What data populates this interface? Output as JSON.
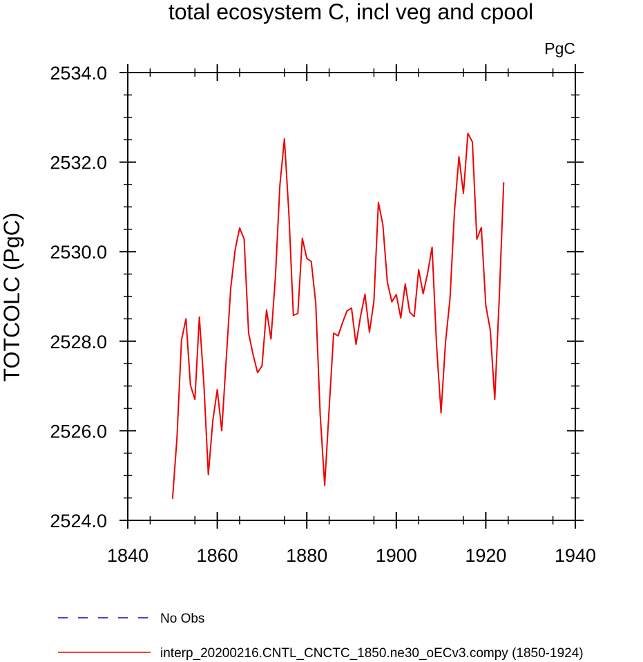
{
  "chart_data": {
    "type": "line",
    "title": "total ecosystem C, incl veg and cpool",
    "units_label": "PgC",
    "ylabel": "TOTCOLC  (PgC)",
    "xlabel": "",
    "xlim": [
      1840,
      1940
    ],
    "ylim": [
      2524.0,
      2534.0
    ],
    "x_ticks": [
      1840,
      1860,
      1880,
      1900,
      1920,
      1940
    ],
    "x_tick_labels": [
      "1840",
      "1860",
      "1880",
      "1900",
      "1920",
      "1940"
    ],
    "y_ticks": [
      2524.0,
      2526.0,
      2528.0,
      2530.0,
      2532.0,
      2534.0
    ],
    "y_tick_labels": [
      "2524.0",
      "2526.0",
      "2528.0",
      "2530.0",
      "2532.0",
      "2534.0"
    ],
    "grid": false,
    "legend_position": "bottom",
    "series": [
      {
        "name": "No Obs",
        "color": "#0000cc",
        "dash": "dashed",
        "x": [],
        "values": []
      },
      {
        "name": "interp_20200216.CNTL_CNCTC_1850.ne30_oECv3.compy (1850-1924)",
        "color": "#ee0000",
        "dash": "solid",
        "x": [
          1850,
          1851,
          1852,
          1853,
          1854,
          1855,
          1856,
          1857,
          1858,
          1859,
          1860,
          1861,
          1862,
          1863,
          1864,
          1865,
          1866,
          1867,
          1868,
          1869,
          1870,
          1871,
          1872,
          1873,
          1874,
          1875,
          1876,
          1877,
          1878,
          1879,
          1880,
          1881,
          1882,
          1883,
          1884,
          1885,
          1886,
          1887,
          1888,
          1889,
          1890,
          1891,
          1892,
          1893,
          1894,
          1895,
          1896,
          1897,
          1898,
          1899,
          1900,
          1901,
          1902,
          1903,
          1904,
          1905,
          1906,
          1907,
          1908,
          1909,
          1910,
          1911,
          1912,
          1913,
          1914,
          1915,
          1916,
          1917,
          1918,
          1919,
          1920,
          1921,
          1922,
          1923,
          1924
        ],
        "values": [
          2524.48,
          2525.85,
          2528.02,
          2528.5,
          2527.02,
          2526.7,
          2528.54,
          2527.05,
          2525.02,
          2526.22,
          2526.92,
          2526.0,
          2527.6,
          2529.18,
          2530.05,
          2530.53,
          2530.28,
          2528.18,
          2527.7,
          2527.3,
          2527.45,
          2528.7,
          2528.05,
          2529.45,
          2531.5,
          2532.52,
          2530.85,
          2528.58,
          2528.62,
          2530.3,
          2529.85,
          2529.78,
          2528.85,
          2526.35,
          2524.78,
          2526.5,
          2528.18,
          2528.12,
          2528.42,
          2528.68,
          2528.74,
          2527.93,
          2528.55,
          2529.05,
          2528.2,
          2528.9,
          2531.1,
          2530.6,
          2529.32,
          2528.88,
          2529.04,
          2528.52,
          2529.28,
          2528.65,
          2528.55,
          2529.6,
          2529.06,
          2529.52,
          2530.1,
          2527.9,
          2526.4,
          2527.98,
          2528.95,
          2530.9,
          2532.12,
          2531.3,
          2532.64,
          2532.45,
          2530.28,
          2530.54,
          2528.8,
          2528.25,
          2526.7,
          2528.95,
          2531.55
        ]
      }
    ]
  }
}
